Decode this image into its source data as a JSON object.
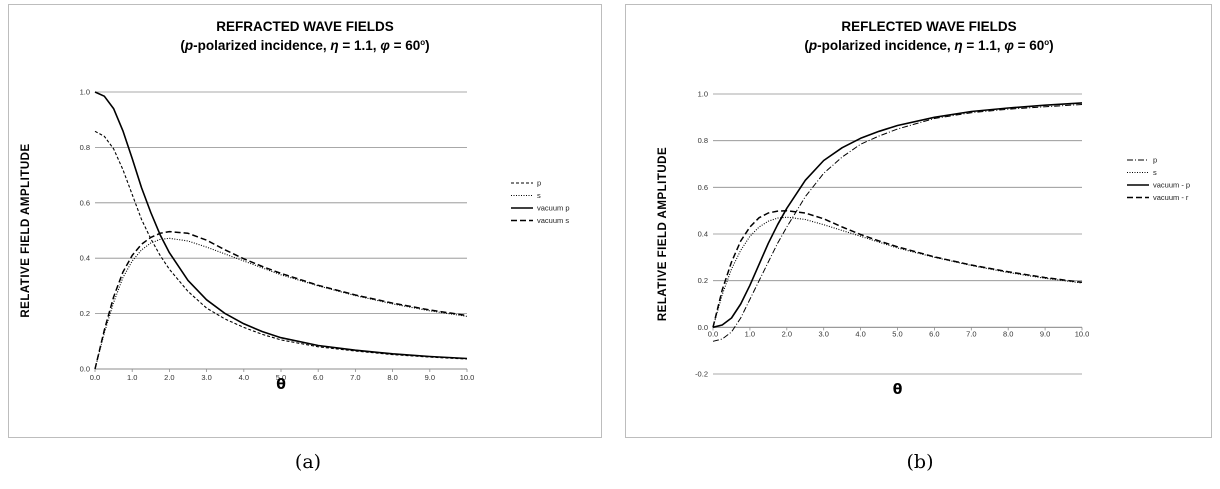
{
  "chart_data": [
    {
      "type": "line",
      "title": "REFRACTED WAVE FIELDS",
      "subtitle": {
        "open": "(",
        "p": "p",
        "mid": "-polarized incidence,  ",
        "eta": "η",
        "eta_val": " = 1.1,  ",
        "phi": "φ",
        "phi_val": " = 60",
        "sup": "o",
        "close": ")"
      },
      "xlabel": "θ",
      "ylabel": "RELATIVE  FIELD  AMPLITUDE",
      "xlim": [
        0,
        10
      ],
      "ylim": [
        0,
        1
      ],
      "xticks": [
        "0.0",
        "1.0",
        "2.0",
        "3.0",
        "4.0",
        "5.0",
        "6.0",
        "7.0",
        "8.0",
        "9.0",
        "10.0"
      ],
      "yticks": [
        "0.0",
        "0.2",
        "0.4",
        "0.6",
        "0.8",
        "1.0"
      ],
      "grid": "horizontal",
      "legend_position": "right",
      "x": [
        0,
        0.25,
        0.5,
        0.75,
        1,
        1.25,
        1.5,
        1.75,
        2,
        2.5,
        3,
        3.5,
        4,
        4.5,
        5,
        6,
        7,
        8,
        9,
        10
      ],
      "series": [
        {
          "name": "p",
          "dash": "3,2",
          "width": 1.1,
          "values": [
            0.858,
            0.84,
            0.795,
            0.72,
            0.63,
            0.54,
            0.47,
            0.41,
            0.36,
            0.28,
            0.22,
            0.18,
            0.15,
            0.125,
            0.105,
            0.08,
            0.065,
            0.052,
            0.043,
            0.036
          ]
        },
        {
          "name": "s",
          "dash": "1,1.5",
          "width": 1.1,
          "values": [
            0,
            0.13,
            0.24,
            0.33,
            0.39,
            0.43,
            0.455,
            0.468,
            0.472,
            0.462,
            0.44,
            0.415,
            0.39,
            0.365,
            0.34,
            0.3,
            0.265,
            0.235,
            0.21,
            0.19
          ]
        },
        {
          "name": "vacuum p",
          "dash": "",
          "width": 1.6,
          "values": [
            1.0,
            0.985,
            0.94,
            0.86,
            0.76,
            0.655,
            0.565,
            0.485,
            0.42,
            0.32,
            0.25,
            0.2,
            0.163,
            0.135,
            0.113,
            0.085,
            0.068,
            0.055,
            0.045,
            0.038
          ]
        },
        {
          "name": "vacuum s",
          "dash": "6,3",
          "width": 1.5,
          "values": [
            0,
            0.14,
            0.26,
            0.35,
            0.41,
            0.45,
            0.475,
            0.49,
            0.496,
            0.49,
            0.465,
            0.43,
            0.398,
            0.37,
            0.345,
            0.302,
            0.267,
            0.238,
            0.213,
            0.193
          ]
        }
      ]
    },
    {
      "type": "line",
      "title": "REFLECTED WAVE FIELDS",
      "subtitle": {
        "open": "(",
        "p": "p",
        "mid": "-polarized incidence,  ",
        "eta": "η",
        "eta_val": " = 1.1,  ",
        "phi": "φ",
        "phi_val": " = 60",
        "sup": "o",
        "close": ")"
      },
      "xlabel": "θ",
      "ylabel": "RELATIVE  FIELD  AMPLITUDE",
      "xlim": [
        0,
        10
      ],
      "ylim": [
        -0.2,
        1
      ],
      "xticks": [
        "0.0",
        "1.0",
        "2.0",
        "3.0",
        "4.0",
        "5.0",
        "6.0",
        "7.0",
        "8.0",
        "9.0",
        "10.0"
      ],
      "yticks": [
        "-0.2",
        "0.0",
        "0.2",
        "0.4",
        "0.6",
        "0.8",
        "1.0"
      ],
      "grid": "horizontal",
      "legend_position": "right",
      "x": [
        0,
        0.25,
        0.5,
        0.75,
        1,
        1.25,
        1.5,
        1.75,
        2,
        2.5,
        3,
        3.5,
        4,
        4.5,
        5,
        6,
        7,
        8,
        9,
        10
      ],
      "series": [
        {
          "name": "p",
          "dash": "6,2,1,2",
          "width": 1.0,
          "values": [
            -0.06,
            -0.05,
            -0.02,
            0.04,
            0.12,
            0.2,
            0.28,
            0.36,
            0.43,
            0.56,
            0.66,
            0.73,
            0.785,
            0.82,
            0.85,
            0.895,
            0.92,
            0.935,
            0.945,
            0.955
          ]
        },
        {
          "name": "s",
          "dash": "1,1.5",
          "width": 1.1,
          "values": [
            0,
            0.14,
            0.25,
            0.33,
            0.39,
            0.43,
            0.455,
            0.468,
            0.472,
            0.462,
            0.44,
            0.415,
            0.39,
            0.365,
            0.34,
            0.3,
            0.265,
            0.235,
            0.21,
            0.19
          ]
        },
        {
          "name": "vacuum - p",
          "dash": "",
          "width": 1.6,
          "values": [
            0,
            0.01,
            0.04,
            0.1,
            0.18,
            0.27,
            0.36,
            0.44,
            0.51,
            0.63,
            0.715,
            0.77,
            0.81,
            0.84,
            0.865,
            0.9,
            0.925,
            0.94,
            0.952,
            0.962
          ]
        },
        {
          "name": "vacuum - r",
          "dash": "6,3",
          "width": 1.5,
          "values": [
            0,
            0.16,
            0.28,
            0.37,
            0.43,
            0.47,
            0.49,
            0.498,
            0.5,
            0.49,
            0.465,
            0.43,
            0.398,
            0.37,
            0.345,
            0.302,
            0.267,
            0.238,
            0.213,
            0.193
          ]
        }
      ]
    }
  ],
  "captions": [
    "(a)",
    "(b)"
  ]
}
